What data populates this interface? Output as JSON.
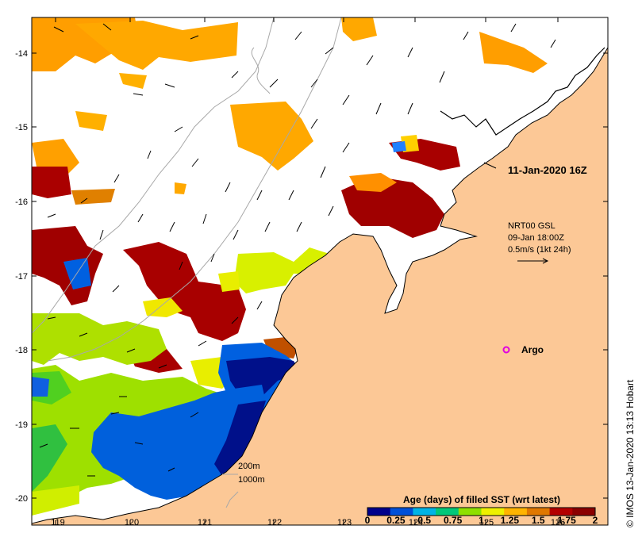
{
  "map": {
    "longitude_labels": [
      "119",
      "120",
      "121",
      "122",
      "123",
      "124",
      "125",
      "126"
    ],
    "latitude_labels": [
      "-14",
      "-15",
      "-16",
      "-17",
      "-18",
      "-19",
      "-20"
    ],
    "timestamp_label": "11-Jan-2020 16Z",
    "current_info": {
      "line1": "NRT00 GSL",
      "line2": "09-Jan 18:00Z",
      "line3": "0.5m/s (1kt 24h)"
    },
    "argo_label": "Argo",
    "depth_contours": {
      "label1": "200m",
      "label2": "1000m"
    },
    "credit": "© IMOS 13-Jan-2020 13:13 Hobart"
  },
  "legend": {
    "title": "Age (days) of filled SST (wrt latest)",
    "ticks": [
      "0",
      "0.25",
      "0.5",
      "0.75",
      "1",
      "1.25",
      "1.5",
      "1.75",
      "2"
    ],
    "colors": [
      "#00008b",
      "#0050d8",
      "#00b4e6",
      "#00c87a",
      "#8ee000",
      "#eef000",
      "#ffb400",
      "#e07800",
      "#b40000",
      "#8b0000"
    ]
  },
  "colors": {
    "land": "#fcc896",
    "argo_marker": "#e000e0",
    "coast": "#000000",
    "contour": "#a8a8a8"
  }
}
